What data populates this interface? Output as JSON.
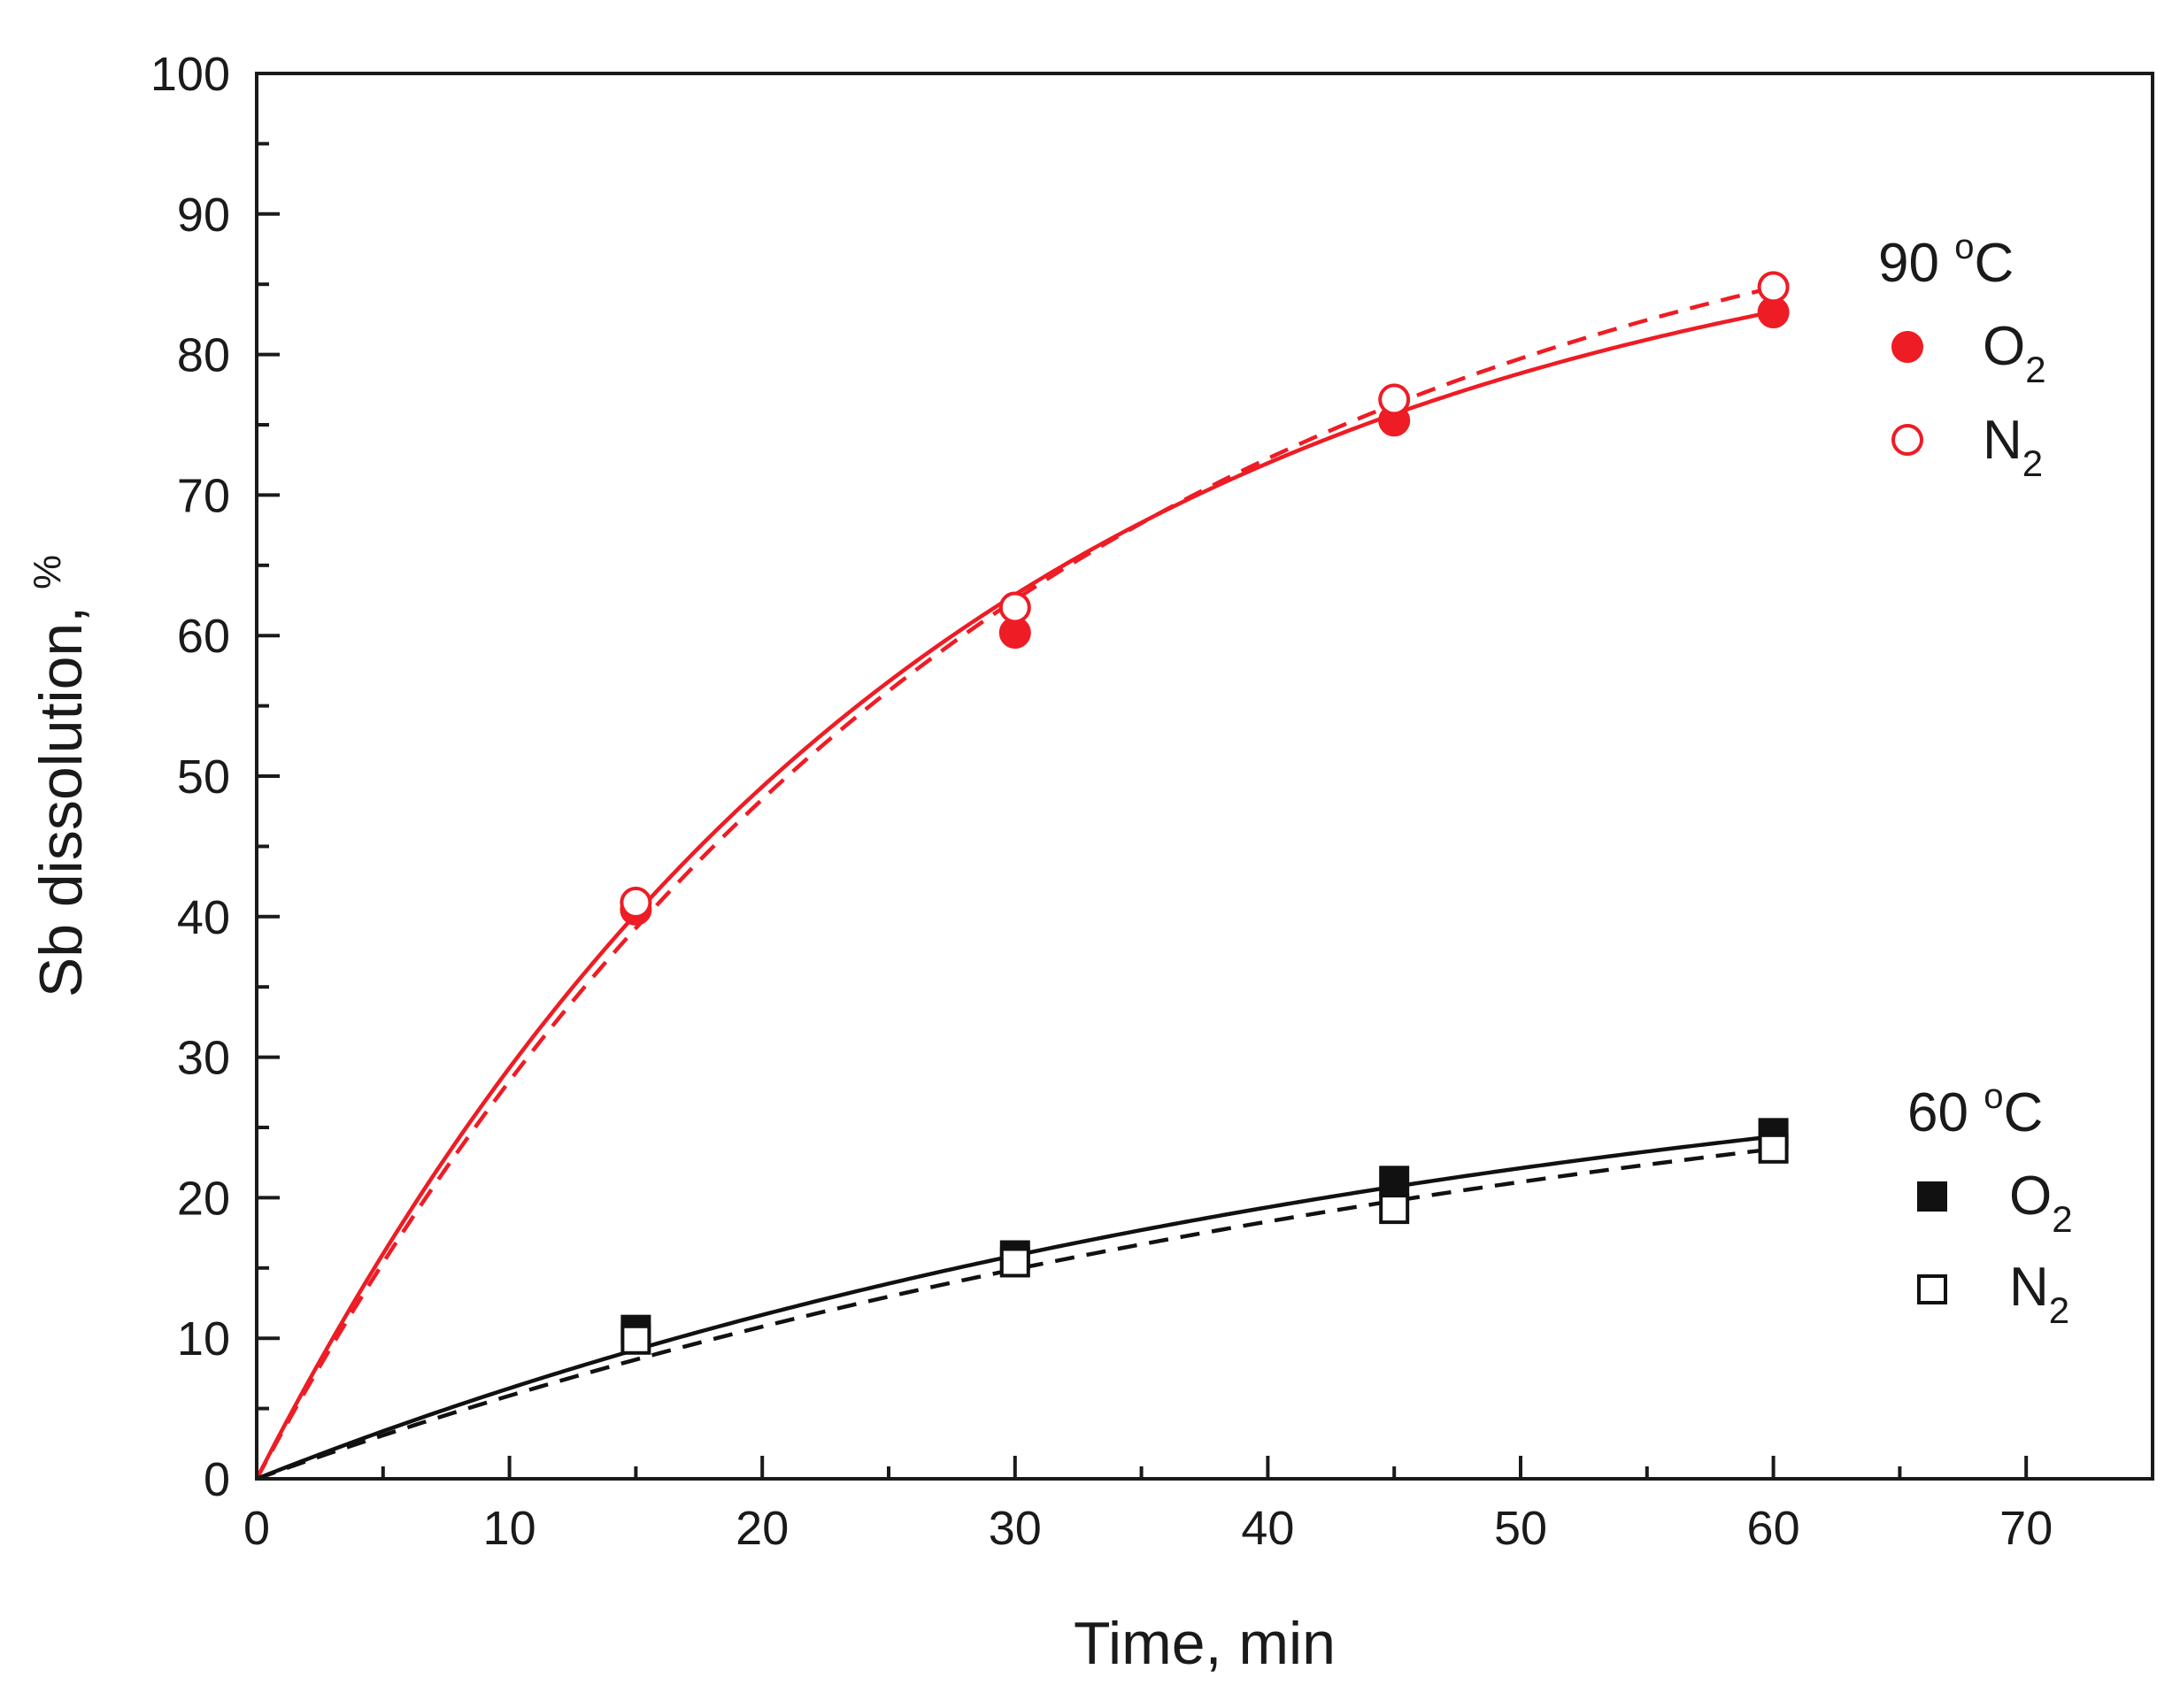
{
  "chart_data": {
    "type": "scatter",
    "title": "",
    "xlabel": "Time, min",
    "ylabel_main": "Sb dissolution, ",
    "ylabel_unit": "%",
    "xlim": [
      0,
      75
    ],
    "ylim": [
      0,
      100
    ],
    "xticks": [
      0,
      10,
      20,
      30,
      40,
      50,
      60,
      70
    ],
    "yticks": [
      0,
      10,
      20,
      30,
      40,
      50,
      60,
      70,
      80,
      90,
      100
    ],
    "grid": false,
    "legend": [
      {
        "title_main": "90 ",
        "title_sup": "o",
        "title_unit": "C",
        "entries": [
          {
            "series": "90C_O2",
            "label": "O",
            "sub": "2"
          },
          {
            "series": "90C_N2",
            "label": "N",
            "sub": "2"
          }
        ]
      },
      {
        "title_main": "60 ",
        "title_sup": "o",
        "title_unit": "C",
        "entries": [
          {
            "series": "60C_O2",
            "label": "O",
            "sub": "2"
          },
          {
            "series": "60C_N2",
            "label": "N",
            "sub": "2"
          }
        ]
      }
    ],
    "series": [
      {
        "name": "90 °C O2",
        "id": "90C_O2",
        "marker": "circle",
        "filled": true,
        "color": "#ee1c24",
        "line": "solid",
        "x": [
          0,
          15,
          30,
          45,
          60
        ],
        "y": [
          0,
          40.5,
          60.2,
          75.3,
          83.0
        ],
        "fit_plateau": 92.5,
        "fit_k": 0.038
      },
      {
        "name": "90 °C N2",
        "id": "90C_N2",
        "marker": "circle",
        "filled": false,
        "color": "#ee1c24",
        "line": "dashed",
        "x": [
          0,
          15,
          30,
          45,
          60
        ],
        "y": [
          0,
          41.0,
          62.0,
          76.8,
          84.8
        ],
        "fit_plateau": 97.0,
        "fit_k": 0.0345
      },
      {
        "name": "60 °C O2",
        "id": "60C_O2",
        "marker": "square",
        "filled": true,
        "color": "#111111",
        "line": "solid",
        "x": [
          0,
          15,
          30,
          45,
          60
        ],
        "y": [
          0,
          10.6,
          15.9,
          21.2,
          24.6
        ],
        "fit_plateau": 34.0,
        "fit_k": 0.021
      },
      {
        "name": "60 °C N2",
        "id": "60C_N2",
        "marker": "square",
        "filled": false,
        "color": "#111111",
        "line": "dashed",
        "x": [
          0,
          15,
          30,
          45,
          60
        ],
        "y": [
          0,
          9.9,
          15.4,
          19.2,
          23.5
        ],
        "fit_plateau": 35.0,
        "fit_k": 0.0185
      }
    ]
  }
}
